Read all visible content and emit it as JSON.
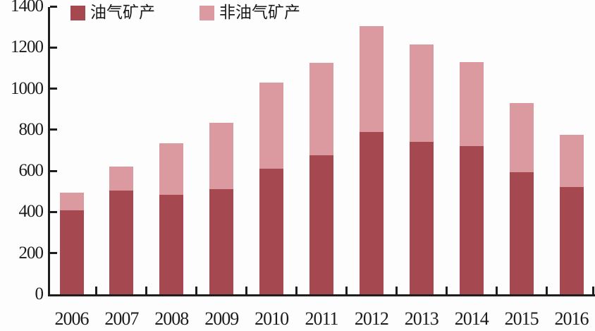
{
  "chart_data": {
    "type": "bar",
    "stacked": true,
    "title": "",
    "xlabel": "",
    "ylabel": "",
    "categories": [
      "2006",
      "2007",
      "2008",
      "2009",
      "2010",
      "2011",
      "2012",
      "2013",
      "2014",
      "2015",
      "2016"
    ],
    "series": [
      {
        "name": "油气矿产",
        "color": "#a5484f",
        "values": [
          410,
          505,
          485,
          510,
          610,
          675,
          790,
          740,
          722,
          595,
          520
        ]
      },
      {
        "name": "非油气矿产",
        "color": "#db9aa0",
        "values": [
          85,
          115,
          250,
          325,
          420,
          450,
          515,
          475,
          408,
          335,
          255
        ]
      }
    ],
    "totals": [
      495,
      620,
      735,
      835,
      1030,
      1125,
      1305,
      1215,
      1130,
      930,
      775
    ],
    "ylim": [
      0,
      1400
    ],
    "ytick_step": 200,
    "yticks": [
      0,
      200,
      400,
      600,
      800,
      1000,
      1200,
      1400
    ],
    "legend_position": "top-left",
    "grid": false,
    "axis_color": "#1e1e1e",
    "background_color": "#fdfdfd"
  }
}
